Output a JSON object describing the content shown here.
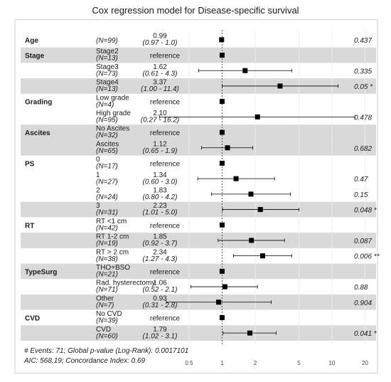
{
  "chart_data": {
    "type": "forest",
    "title": "Cox regression model for Disease-specific survival",
    "x_scale": "log",
    "x_ticks": [
      0.5,
      1,
      2,
      5,
      10,
      20
    ],
    "x_range": [
      0.35,
      26
    ],
    "reference_line": 1,
    "rows": [
      {
        "variable": "Age",
        "level": "",
        "n": "(N=99)",
        "hr": "0.99",
        "ci": "(0.97 - 1.0)",
        "p": "0.437",
        "est": 0.99,
        "lo": 0.97,
        "hi": 1.0,
        "shade": false
      },
      {
        "variable": "Stage",
        "level": "Stage2",
        "n": "(N=13)",
        "hr": "reference",
        "ci": "",
        "p": "",
        "est": 1,
        "lo": null,
        "hi": null,
        "shade": true
      },
      {
        "variable": "",
        "level": "Stage3",
        "n": "(N=73)",
        "hr": "1.62",
        "ci": "(0.61 - 4.3)",
        "p": "0.335",
        "est": 1.62,
        "lo": 0.61,
        "hi": 4.3,
        "shade": false
      },
      {
        "variable": "",
        "level": "Stage4",
        "n": "(N=13)",
        "hr": "3.37",
        "ci": "(1.00 - 11.4)",
        "p": "0.05 *",
        "est": 3.37,
        "lo": 1.0,
        "hi": 11.4,
        "shade": true
      },
      {
        "variable": "Grading",
        "level": "Low grade",
        "n": "(N=4)",
        "hr": "reference",
        "ci": "",
        "p": "",
        "est": 1,
        "lo": null,
        "hi": null,
        "shade": false
      },
      {
        "variable": "",
        "level": "High grade",
        "n": "(N=95)",
        "hr": "2.10",
        "ci": "(0.27 - 16.2)",
        "p": "0.478",
        "est": 2.1,
        "lo": 0.27,
        "hi": 16.2,
        "shade": false
      },
      {
        "variable": "Ascites",
        "level": "No Ascites",
        "n": "(N=32)",
        "hr": "reference",
        "ci": "",
        "p": "",
        "est": 1,
        "lo": null,
        "hi": null,
        "shade": true
      },
      {
        "variable": "",
        "level": "Ascites",
        "n": "(N=65)",
        "hr": "1.12",
        "ci": "(0.65 - 1.9)",
        "p": "0.682",
        "est": 1.12,
        "lo": 0.65,
        "hi": 1.9,
        "shade": true
      },
      {
        "variable": "PS",
        "level": "0",
        "n": "(N=17)",
        "hr": "reference",
        "ci": "",
        "p": "",
        "est": 1,
        "lo": null,
        "hi": null,
        "shade": false
      },
      {
        "variable": "",
        "level": "1",
        "n": "(N=27)",
        "hr": "1.34",
        "ci": "(0.60 - 3.0)",
        "p": "0.47",
        "est": 1.34,
        "lo": 0.6,
        "hi": 3.0,
        "shade": false
      },
      {
        "variable": "",
        "level": "2",
        "n": "(N=24)",
        "hr": "1.83",
        "ci": "(0.80 - 4.2)",
        "p": "0.15",
        "est": 1.83,
        "lo": 0.8,
        "hi": 4.2,
        "shade": false
      },
      {
        "variable": "",
        "level": "3",
        "n": "(N=31)",
        "hr": "2.23",
        "ci": "(1.01 - 5.0)",
        "p": "0.048 *",
        "est": 2.23,
        "lo": 1.01,
        "hi": 5.0,
        "shade": true
      },
      {
        "variable": "RT",
        "level": "RT <1 cm",
        "n": "(N=42)",
        "hr": "reference",
        "ci": "",
        "p": "",
        "est": 1,
        "lo": null,
        "hi": null,
        "shade": false
      },
      {
        "variable": "",
        "level": "RT 1-2 cm",
        "n": "(N=19)",
        "hr": "1.85",
        "ci": "(0.92 - 3.7)",
        "p": "0.087",
        "est": 1.85,
        "lo": 0.92,
        "hi": 3.7,
        "shade": true
      },
      {
        "variable": "",
        "level": "RT > 2 cm",
        "n": "(N=38)",
        "hr": "2.34",
        "ci": "(1.27 - 4.3)",
        "p": "0.006 **",
        "est": 2.34,
        "lo": 1.27,
        "hi": 4.3,
        "shade": false
      },
      {
        "variable": "TypeSurg",
        "level": "THO+BSO",
        "n": "(N=21)",
        "hr": "reference",
        "ci": "",
        "p": "",
        "est": 1,
        "lo": null,
        "hi": null,
        "shade": true
      },
      {
        "variable": "",
        "level": "Rad. hysterectomy",
        "n": "(N=71)",
        "hr": "1.06",
        "ci": "(0.52 - 2.1)",
        "p": "0.88",
        "est": 1.06,
        "lo": 0.52,
        "hi": 2.1,
        "shade": false
      },
      {
        "variable": "",
        "level": "Other",
        "n": "(N=7)",
        "hr": "0.93",
        "ci": "(0.31 - 2.8)",
        "p": "0.904",
        "est": 0.93,
        "lo": 0.31,
        "hi": 2.8,
        "shade": true
      },
      {
        "variable": "CVD",
        "level": "No CVD",
        "n": "(N=39)",
        "hr": "reference",
        "ci": "",
        "p": "",
        "est": 1,
        "lo": null,
        "hi": null,
        "shade": false
      },
      {
        "variable": "",
        "level": "CVD",
        "n": "(N=60)",
        "hr": "1.79",
        "ci": "(1.02 - 3.1)",
        "p": "0.041 *",
        "est": 1.79,
        "lo": 1.02,
        "hi": 3.1,
        "shade": true
      }
    ],
    "footnotes": [
      "# Events: 71; Global p-value (Log-Rank): 0.0017101",
      "AIC: 568.19; Concordance Index: 0.69"
    ],
    "colors": {
      "shade": "#d9d9d9",
      "frame": "#cfcfcf",
      "marker": "#000000",
      "text": "#1a1a1a"
    }
  }
}
